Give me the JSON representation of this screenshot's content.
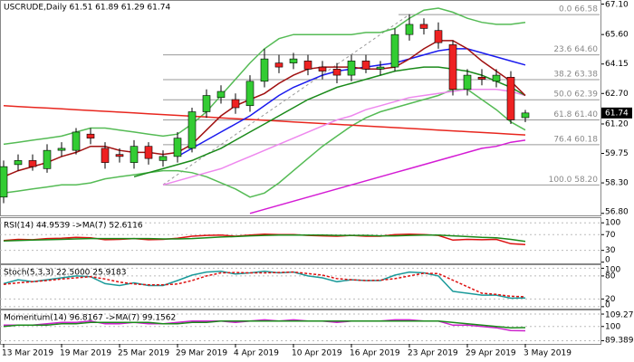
{
  "chart_data": [
    {
      "type": "candlestick",
      "title": "USCRUDE,Daily  61.51 61.89 61.29 61.74",
      "categories": [
        "13 Mar 2019",
        null,
        null,
        null,
        "19 Mar 2019",
        null,
        null,
        null,
        "25 Mar 2019",
        null,
        null,
        null,
        "29 Mar 2019",
        null,
        null,
        null,
        "4 Apr 2019",
        null,
        null,
        null,
        "10 Apr 2019",
        null,
        null,
        null,
        "16 Apr 2019",
        null,
        null,
        null,
        "23 Apr 2019",
        null,
        null,
        null,
        "29 Apr 2019",
        null,
        null,
        null,
        "3 May 2019"
      ],
      "open": [
        57.6,
        59.2,
        59.4,
        59.0,
        59.9,
        59.9,
        60.7,
        60.0,
        59.7,
        59.3,
        60.1,
        59.4,
        59.6,
        60.0,
        61.8,
        62.5,
        62.4,
        62.1,
        63.3,
        64.2,
        64.2,
        64.3,
        64.0,
        63.9,
        63.6,
        64.3,
        63.9,
        64.0,
        65.6,
        66.1,
        65.8,
        65.1,
        62.9,
        63.5,
        63.3,
        63.5,
        61.51
      ],
      "high": [
        59.4,
        59.7,
        59.7,
        60.2,
        60.3,
        61.0,
        61.0,
        60.3,
        60.0,
        60.4,
        60.3,
        59.9,
        60.8,
        62.0,
        62.9,
        63.1,
        62.7,
        63.6,
        64.9,
        64.6,
        64.7,
        64.6,
        64.3,
        64.2,
        64.6,
        64.6,
        64.3,
        65.9,
        66.6,
        66.4,
        66.2,
        65.3,
        63.9,
        63.9,
        63.9,
        63.8,
        61.89
      ],
      "low": [
        57.3,
        58.9,
        58.9,
        58.8,
        59.6,
        59.7,
        60.2,
        59.0,
        59.3,
        59.0,
        59.2,
        59.1,
        59.3,
        59.8,
        61.5,
        62.2,
        61.7,
        61.8,
        63.0,
        63.7,
        63.9,
        63.6,
        63.4,
        63.2,
        63.3,
        63.7,
        63.6,
        63.8,
        65.3,
        65.6,
        64.9,
        62.6,
        62.6,
        63.1,
        63.0,
        61.2,
        61.29
      ],
      "close": [
        59.1,
        59.4,
        59.1,
        59.9,
        60.0,
        60.8,
        60.5,
        59.3,
        59.6,
        60.1,
        59.5,
        59.6,
        60.5,
        61.8,
        62.6,
        62.8,
        62.0,
        63.3,
        64.4,
        64.0,
        64.4,
        63.9,
        63.8,
        63.6,
        64.3,
        63.9,
        64.0,
        65.6,
        66.1,
        65.9,
        65.2,
        62.9,
        63.6,
        63.4,
        63.6,
        61.4,
        61.74
      ],
      "up_color": "#33cc33",
      "down_color": "#ee2222",
      "ylim": [
        56.7,
        67.3
      ],
      "yticks": [
        {
          "value": 67.1,
          "label": "67.10"
        },
        {
          "value": 65.6,
          "label": "65.60"
        },
        64.15,
        {
          "value": 62.7,
          "label": "62.70"
        },
        {
          "value": 61.2,
          "label": "61.20"
        },
        59.75,
        {
          "value": 58.3,
          "label": "58.30"
        },
        {
          "value": 56.8,
          "label": "56.80"
        }
      ],
      "fib_levels": [
        {
          "value": 66.58,
          "label": "0.0 66.58"
        },
        {
          "value": 64.6,
          "label": "23.6 64.60"
        },
        {
          "value": 63.38,
          "label": "38.2 63.38"
        },
        {
          "value": 62.39,
          "label": "50.0 62.39"
        },
        {
          "value": 61.4,
          "label": "61.8 61.40"
        },
        {
          "value": 60.18,
          "label": "76.4 60.18"
        },
        {
          "value": 58.2,
          "label": "100.0 58.20"
        }
      ],
      "last_price": 61.74,
      "series": [
        {
          "color": "#55bb55",
          "values": [
            60.2,
            60.3,
            60.4,
            60.5,
            60.6,
            60.8,
            61.0,
            61.0,
            60.9,
            60.8,
            60.7,
            60.6,
            60.7,
            61.2,
            61.8,
            62.6,
            63.4,
            64.2,
            64.9,
            65.4,
            65.6,
            65.6,
            65.6,
            65.6,
            65.6,
            65.7,
            65.7,
            65.9,
            66.4,
            66.8,
            66.9,
            66.7,
            66.4,
            66.2,
            66.1,
            66.1,
            66.2
          ]
        },
        {
          "color": "#55bb55",
          "values": [
            57.8,
            57.9,
            58.0,
            58.1,
            58.2,
            58.2,
            58.3,
            58.5,
            58.6,
            58.7,
            58.8,
            58.9,
            58.9,
            58.8,
            58.6,
            58.3,
            58.0,
            57.6,
            57.8,
            58.3,
            58.9,
            59.5,
            60.1,
            60.6,
            61.1,
            61.5,
            61.8,
            62.0,
            62.2,
            62.4,
            62.6,
            62.9,
            62.9,
            62.4,
            61.9,
            61.3,
            60.9
          ]
        },
        {
          "color": "#e8261e",
          "values": [
            62.1,
            62.06,
            62.02,
            61.98,
            61.94,
            61.9,
            61.86,
            61.82,
            61.78,
            61.74,
            61.7,
            61.66,
            61.62,
            61.58,
            61.54,
            61.5,
            61.46,
            61.42,
            61.38,
            61.34,
            61.3,
            61.26,
            61.22,
            61.18,
            61.14,
            61.1,
            61.06,
            61.02,
            60.98,
            60.94,
            60.9,
            60.86,
            60.82,
            60.78,
            60.74,
            60.7,
            60.66
          ]
        },
        {
          "color": "#d41cd4",
          "values": [
            null,
            null,
            null,
            null,
            null,
            null,
            null,
            null,
            null,
            null,
            null,
            null,
            null,
            null,
            null,
            null,
            null,
            56.8,
            57.0,
            57.2,
            57.4,
            57.6,
            57.8,
            58.0,
            58.2,
            58.4,
            58.6,
            58.8,
            59.0,
            59.2,
            59.4,
            59.6,
            59.8,
            60.0,
            60.1,
            60.3,
            60.4
          ]
        },
        {
          "color": "#ee88ee",
          "values": [
            null,
            null,
            null,
            null,
            null,
            null,
            null,
            null,
            null,
            null,
            null,
            58.2,
            58.4,
            58.6,
            58.8,
            59.0,
            59.3,
            59.6,
            59.9,
            60.2,
            60.5,
            60.8,
            61.1,
            61.4,
            61.6,
            61.9,
            62.1,
            62.3,
            62.5,
            62.6,
            62.7,
            62.8,
            62.9,
            62.9,
            62.9,
            62.8,
            62.6
          ]
        },
        {
          "color": "#1a8a1a",
          "values": [
            null,
            null,
            null,
            null,
            null,
            null,
            null,
            null,
            null,
            58.6,
            58.8,
            59.0,
            59.2,
            59.4,
            59.7,
            60.0,
            60.4,
            60.8,
            61.2,
            61.6,
            62.0,
            62.4,
            62.7,
            63.0,
            63.2,
            63.4,
            63.6,
            63.8,
            63.9,
            64.0,
            64.0,
            63.9,
            63.8,
            63.6,
            63.3,
            63.0,
            62.6
          ]
        },
        {
          "color": "#1a1aee",
          "values": [
            null,
            null,
            null,
            null,
            null,
            null,
            null,
            null,
            null,
            null,
            null,
            null,
            59.6,
            60.0,
            60.4,
            60.8,
            61.2,
            61.6,
            62.1,
            62.6,
            63.0,
            63.3,
            63.6,
            63.8,
            63.9,
            64.0,
            64.1,
            64.2,
            64.4,
            64.6,
            64.8,
            64.9,
            64.9,
            64.7,
            64.5,
            64.3,
            64.1
          ]
        },
        {
          "color": "#a01010",
          "values": [
            58.6,
            58.9,
            59.1,
            59.3,
            59.6,
            59.8,
            60.1,
            60.1,
            59.9,
            59.8,
            59.8,
            59.7,
            59.8,
            60.2,
            60.9,
            61.6,
            62.1,
            62.4,
            62.7,
            63.2,
            63.6,
            63.9,
            64.0,
            64.0,
            64.0,
            63.9,
            63.9,
            64.0,
            64.4,
            64.9,
            65.3,
            65.3,
            64.9,
            64.3,
            63.8,
            63.3,
            62.6
          ]
        }
      ]
    },
    {
      "type": "line",
      "title": "RSI(14) 44.9539  ->MA(7) 52.6116",
      "ylim": [
        -3,
        112
      ],
      "yticks": [
        100,
        70,
        30,
        0
      ],
      "series": [
        {
          "color": "#dd1111",
          "values": [
            55,
            58,
            57,
            60,
            61,
            63,
            62,
            57,
            58,
            60,
            57,
            58,
            61,
            66,
            68,
            69,
            66,
            69,
            71,
            70,
            70,
            68,
            67,
            66,
            68,
            66,
            66,
            70,
            71,
            70,
            68,
            56,
            58,
            57,
            58,
            47,
            44.95
          ]
        },
        {
          "color": "#1a8a1a",
          "values": [
            54,
            55,
            56,
            57,
            58,
            59,
            60,
            60,
            60,
            60,
            60,
            59,
            59,
            60,
            62,
            64,
            65,
            67,
            68,
            69,
            69,
            69,
            69,
            68,
            68,
            68,
            67,
            67,
            68,
            69,
            69,
            67,
            65,
            63,
            62,
            58,
            52.61
          ]
        }
      ]
    },
    {
      "type": "line",
      "title": "Stoch(5,3,3) 22.5000 25.9183",
      "ylim": [
        -5,
        108
      ],
      "yticks": [
        100,
        80,
        20,
        0
      ],
      "series": [
        {
          "color": "#1a9a9a",
          "values": [
            60,
            70,
            65,
            70,
            75,
            80,
            78,
            60,
            55,
            62,
            55,
            55,
            68,
            82,
            90,
            92,
            85,
            88,
            92,
            88,
            90,
            80,
            75,
            65,
            70,
            68,
            68,
            82,
            90,
            88,
            80,
            40,
            35,
            30,
            30,
            22,
            22.5
          ]
        },
        {
          "color": "#dd1111",
          "dash": true,
          "values": [
            58,
            62,
            65,
            68,
            72,
            75,
            78,
            72,
            64,
            59,
            57,
            57,
            59,
            68,
            80,
            88,
            89,
            88,
            88,
            89,
            90,
            86,
            82,
            73,
            70,
            68,
            69,
            73,
            80,
            87,
            86,
            69,
            52,
            35,
            32,
            27,
            25.92
          ]
        }
      ]
    },
    {
      "type": "line",
      "title": "Momentum(14) 96.8167  ->MA(7) 99.1562",
      "ylim": [
        87,
        112
      ],
      "yticks": [
        109.2731,
        100,
        89.3891
      ],
      "series": [
        {
          "color": "#cc22cc",
          "values": [
            101,
            101,
            101,
            102,
            103,
            103,
            104,
            102,
            102,
            103,
            102,
            102,
            103,
            104,
            104,
            104,
            103,
            104,
            105,
            104,
            105,
            104,
            104,
            103,
            104,
            104,
            104,
            105,
            105,
            104,
            104,
            101,
            101,
            100,
            99,
            97,
            96.82
          ]
        },
        {
          "color": "#1a8a1a",
          "values": [
            100,
            101,
            101,
            101,
            102,
            102,
            103,
            103,
            103,
            103,
            103,
            102,
            102,
            103,
            103,
            104,
            104,
            104,
            104,
            104,
            104,
            104,
            104,
            104,
            104,
            104,
            104,
            104,
            104,
            104,
            104,
            103,
            102,
            101,
            100,
            99,
            99.16
          ]
        }
      ]
    }
  ]
}
